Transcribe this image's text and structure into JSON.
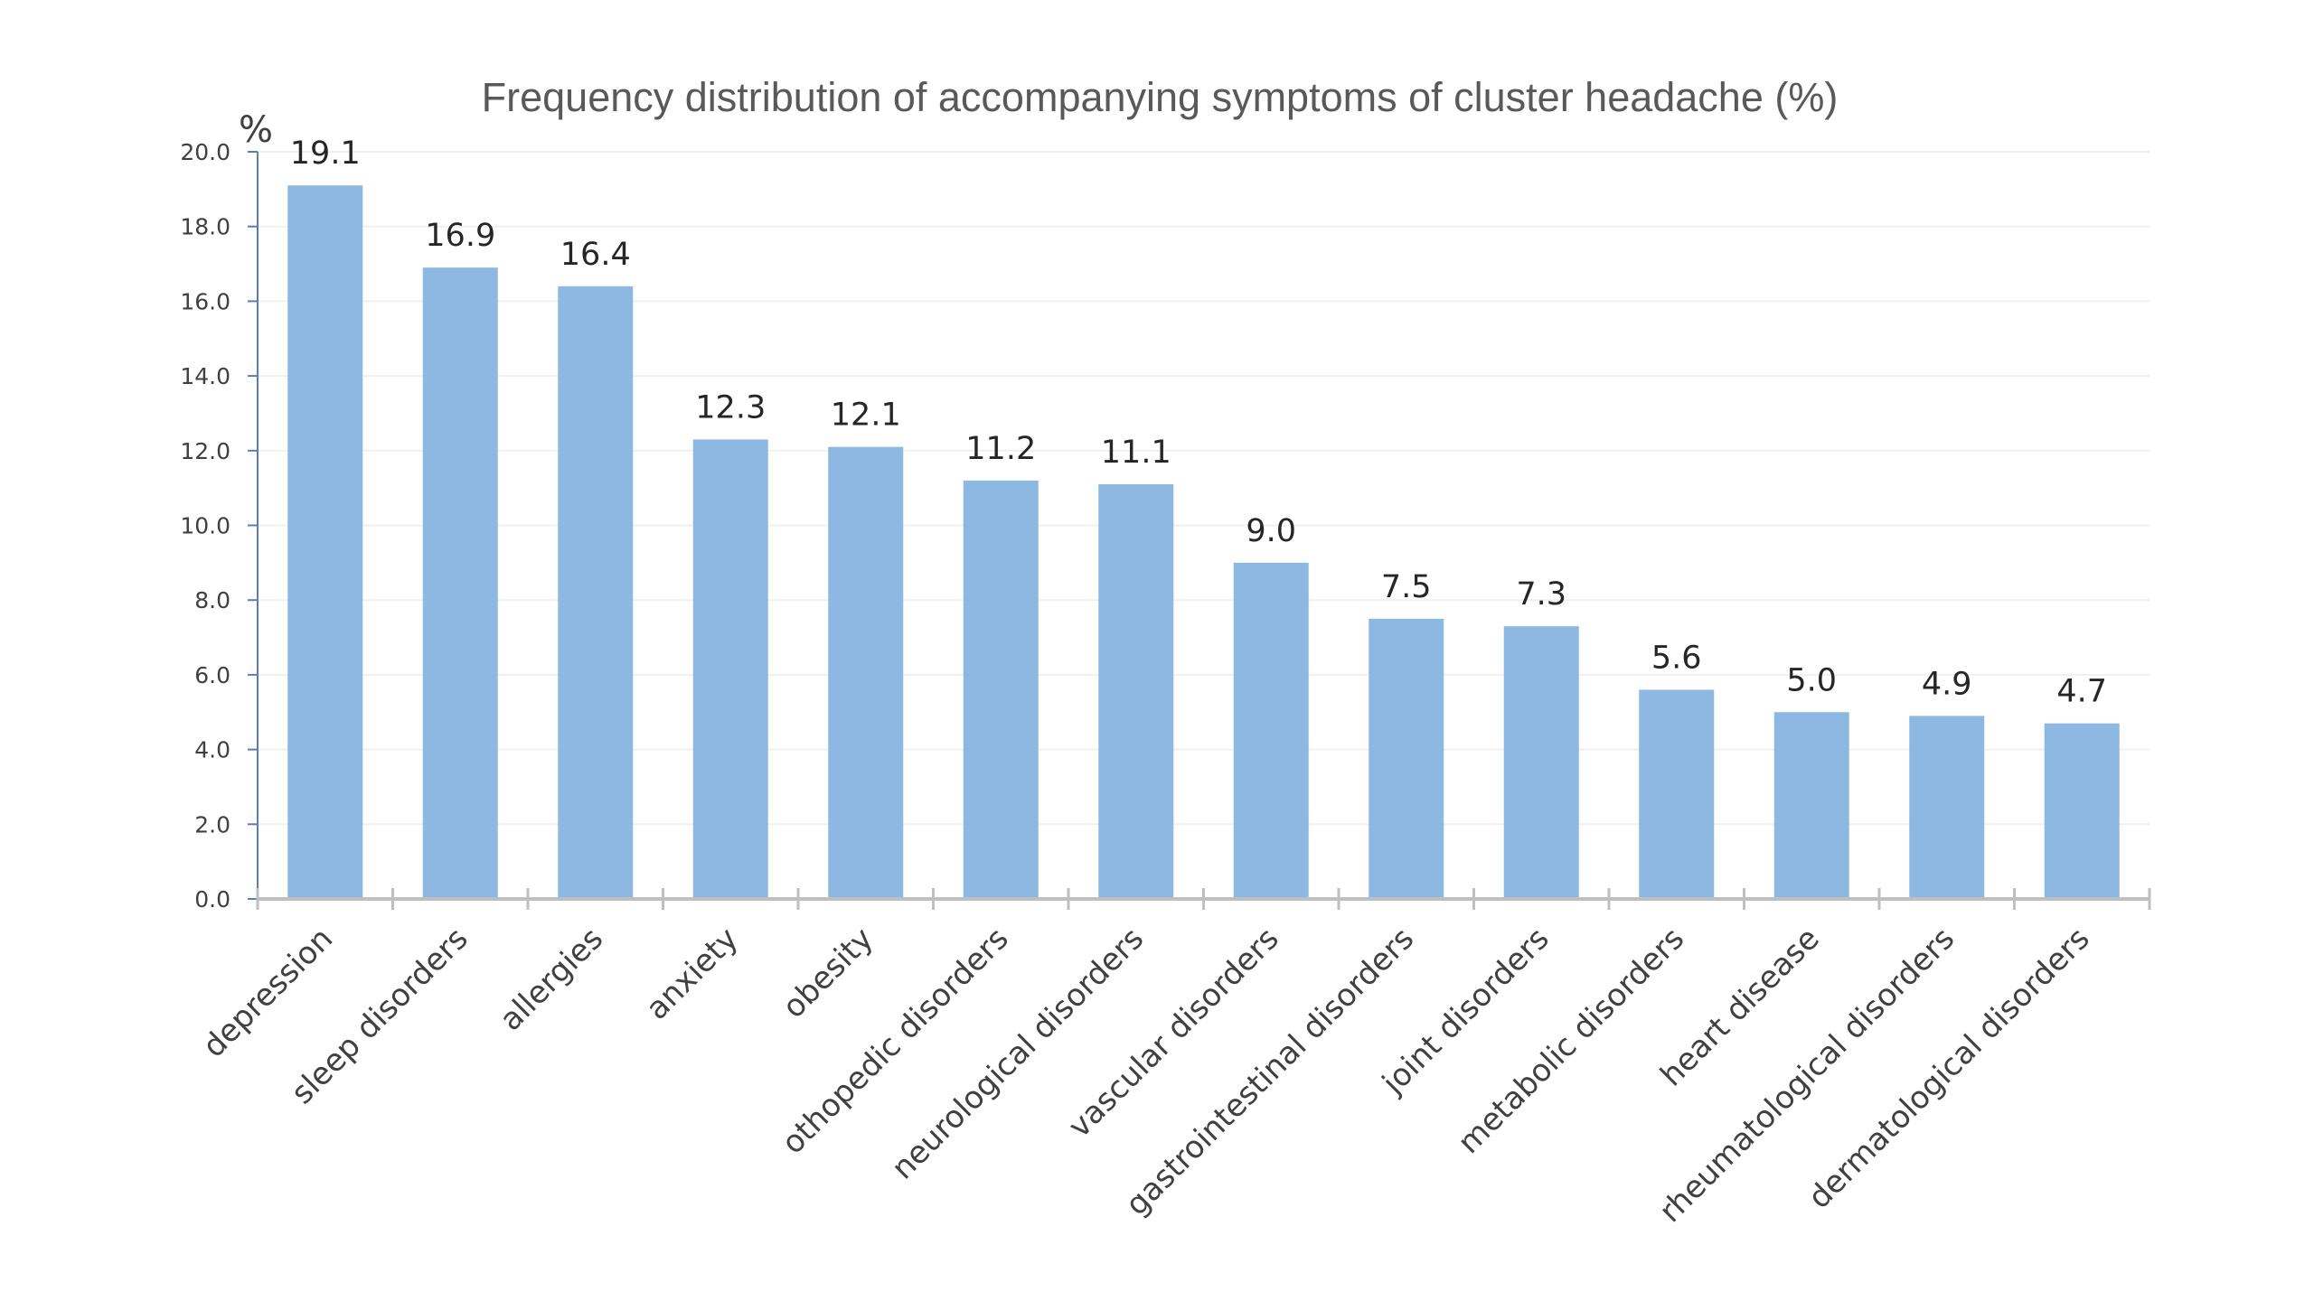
{
  "chart_data": {
    "type": "bar",
    "title": "Frequency distribution of accompanying symptoms of cluster headache (%)",
    "ylabel": "%",
    "xlabel": "",
    "ylim": [
      0,
      20
    ],
    "yticks": [
      "0.0",
      "2.0",
      "4.0",
      "6.0",
      "8.0",
      "10.0",
      "12.0",
      "14.0",
      "16.0",
      "18.0",
      "20.0"
    ],
    "grid": true,
    "legend": "none",
    "bar_color": "#8db8e1",
    "categories": [
      "depression",
      "sleep disorders",
      "allergies",
      "anxiety",
      "obesity",
      "othopedic disorders",
      "neurological disorders",
      "vascular disorders",
      "gastrointestinal disorders",
      "joint disorders",
      "metabolic disorders",
      "heart disease",
      "rheumatological disorders",
      "dermatological disorders"
    ],
    "values": [
      19.1,
      16.9,
      16.4,
      12.3,
      12.1,
      11.2,
      11.1,
      9.0,
      7.5,
      7.3,
      5.6,
      5.0,
      4.9,
      4.7
    ],
    "value_labels": [
      "19.1",
      "16.9",
      "16.4",
      "12.3",
      "12.1",
      "11.2",
      "11.1",
      "9.0",
      "7.5",
      "7.3",
      "5.6",
      "5.0",
      "4.9",
      "4.7"
    ]
  }
}
